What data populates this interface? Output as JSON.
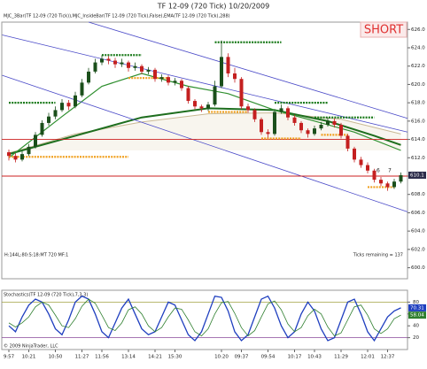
{
  "chart_data": [
    {
      "type": "candlestick",
      "title": "TF 12-09 (720 Tick)  10/20/2009",
      "subtitle": "MJC_3Bar(TF 12-09 (720 Tick)),MJC_InsideBar(TF 12-09 (720 Tick),False),EMA(TF 12-09 (720 Tick),288)",
      "badge": "SHORT",
      "status_left": "H:144L:80:S:18:MT 720 MF:1",
      "status_right": "Ticks remaining = 137",
      "categories": [
        "9:57",
        null,
        null,
        "10:21",
        null,
        null,
        null,
        "10:50",
        null,
        null,
        null,
        "11:27",
        null,
        null,
        "11:56",
        null,
        null,
        null,
        "13:14",
        null,
        null,
        null,
        "14:21",
        null,
        null,
        "15:30",
        null,
        null,
        null,
        null,
        null,
        null,
        "10:20",
        null,
        null,
        "09:37",
        null,
        null,
        null,
        "09:54",
        null,
        null,
        null,
        "10:17",
        null,
        null,
        "10:43",
        null,
        null,
        null,
        "11:29",
        null,
        null,
        null,
        "12:01",
        null,
        null,
        "12:37",
        null,
        null
      ],
      "open": [
        612.6,
        612.2,
        611.8,
        612.4,
        613.2,
        614.5,
        615.8,
        616.5,
        617.2,
        618.0,
        617.6,
        618.8,
        620.2,
        621.4,
        622.4,
        622.8,
        622.6,
        622.2,
        622.4,
        621.8,
        622.0,
        621.4,
        621.6,
        620.6,
        620.8,
        620.2,
        620.4,
        619.6,
        618.2,
        617.6,
        617.4,
        617.8,
        619.8,
        623.0,
        621.2,
        620.6,
        617.6,
        617.2,
        616.2,
        614.8,
        614.6,
        617.0,
        617.4,
        616.4,
        615.8,
        615.0,
        614.6,
        615.2,
        615.6,
        616.0,
        615.6,
        614.4,
        613.0,
        611.8,
        611.2,
        610.6,
        609.6,
        609.2,
        608.8,
        609.4
      ],
      "high": [
        612.9,
        612.5,
        612.7,
        613.5,
        614.8,
        616.1,
        616.9,
        617.6,
        618.4,
        618.3,
        619.2,
        620.6,
        621.8,
        622.8,
        623.2,
        623.1,
        622.9,
        622.8,
        622.6,
        622.4,
        622.2,
        621.9,
        621.8,
        621.1,
        621.0,
        620.7,
        620.6,
        619.8,
        618.4,
        617.8,
        618.1,
        620.4,
        624.8,
        623.4,
        621.8,
        620.8,
        617.9,
        617.4,
        616.4,
        615.1,
        617.3,
        617.8,
        617.6,
        616.7,
        616.0,
        615.2,
        615.5,
        615.9,
        616.4,
        616.3,
        615.8,
        614.6,
        613.2,
        612.1,
        611.5,
        610.8,
        609.9,
        609.4,
        609.7,
        610.4
      ],
      "low": [
        611.7,
        611.5,
        611.6,
        612.2,
        613.0,
        614.3,
        615.5,
        616.2,
        617.0,
        617.2,
        617.4,
        618.6,
        620.0,
        621.2,
        622.1,
        622.2,
        621.8,
        621.9,
        621.4,
        621.5,
        621.1,
        621.1,
        620.3,
        620.3,
        619.9,
        619.9,
        619.3,
        617.9,
        617.3,
        617.0,
        617.1,
        617.6,
        619.6,
        620.8,
        620.2,
        617.3,
        616.9,
        615.9,
        614.5,
        614.2,
        614.4,
        616.8,
        616.1,
        615.5,
        614.7,
        614.2,
        614.4,
        615.0,
        615.4,
        615.3,
        614.1,
        612.7,
        611.5,
        610.9,
        610.3,
        609.3,
        608.9,
        608.4,
        608.6,
        609.2
      ],
      "close": [
        612.2,
        611.8,
        612.4,
        613.2,
        614.5,
        615.8,
        616.5,
        617.2,
        618.0,
        617.6,
        618.8,
        620.2,
        621.4,
        622.4,
        622.8,
        622.6,
        622.2,
        622.4,
        621.8,
        622.0,
        621.4,
        621.6,
        620.6,
        620.8,
        620.2,
        620.4,
        619.6,
        618.2,
        617.6,
        617.4,
        617.8,
        619.8,
        623.0,
        621.2,
        620.6,
        617.6,
        617.2,
        616.2,
        614.8,
        614.6,
        617.0,
        617.4,
        616.4,
        615.8,
        615.0,
        614.6,
        615.2,
        615.6,
        616.0,
        615.6,
        614.4,
        613.0,
        611.8,
        611.2,
        610.6,
        609.6,
        609.2,
        608.8,
        609.4,
        610.1
      ],
      "up_color": "#1b4f1b",
      "down_color": "#c42020",
      "ylim": [
        598.8,
        626.8
      ],
      "yticks": [
        {
          "value": 600,
          "label": "600.0"
        },
        {
          "value": 602,
          "label": "602.0"
        },
        {
          "value": 604,
          "label": "604.0"
        },
        {
          "value": 606,
          "label": "606.0"
        },
        {
          "value": 608,
          "label": "608.0"
        },
        {
          "value": 610,
          "label": "610.0"
        },
        {
          "value": 612,
          "label": "612.0"
        },
        {
          "value": 614,
          "label": "614.0"
        },
        {
          "value": 616,
          "label": "616.0"
        },
        {
          "value": 618,
          "label": "618.0"
        },
        {
          "value": 620,
          "label": "620.0"
        },
        {
          "value": 622,
          "label": "622.0"
        },
        {
          "value": 624,
          "label": "624.0"
        },
        {
          "value": 626,
          "label": "626.0"
        }
      ],
      "overlays": [
        {
          "x": [
            0,
            10,
            20,
            30,
            40,
            50,
            59
          ],
          "values": [
            612.5,
            614.6,
            615.9,
            616.8,
            616.9,
            616.2,
            614.6
          ],
          "color": "#c9b994",
          "width": 1
        },
        {
          "x": [
            0,
            10,
            20,
            30,
            40,
            48,
            55,
            59
          ],
          "values": [
            612.4,
            614.4,
            616.4,
            617.4,
            617.2,
            616.0,
            614.4,
            613.4
          ],
          "color": "#1e6e1e",
          "width": 2
        },
        {
          "x": [
            0,
            8,
            14,
            20,
            27,
            33,
            40,
            46,
            52,
            59
          ],
          "values": [
            612.0,
            616.5,
            619.8,
            621.2,
            619.8,
            619.0,
            617.2,
            616.0,
            614.8,
            612.8
          ],
          "color": "#2f8f2f",
          "width": 1.2
        }
      ],
      "trendlines": [
        {
          "x": [
            12,
            60
          ],
          "values": [
            626.8,
            616.3
          ],
          "color": "#4a4ac8"
        },
        {
          "x": [
            -1,
            60
          ],
          "values": [
            625.4,
            614.8
          ],
          "color": "#4a4ac8"
        },
        {
          "x": [
            -1,
            60
          ],
          "values": [
            621.0,
            606.1
          ],
          "color": "#4a4ac8"
        }
      ],
      "hlines": [
        {
          "value": 614.0,
          "color": "#cc1f1f"
        },
        {
          "value": 610.0,
          "color": "#cc1f1f"
        }
      ],
      "levels": [
        {
          "x": [
            0,
            7
          ],
          "value": 618.0,
          "color": "#1a7a1a"
        },
        {
          "x": [
            14,
            20
          ],
          "value": 623.2,
          "color": "#1a7a1a"
        },
        {
          "x": [
            31,
            41
          ],
          "value": 624.6,
          "color": "#1a7a1a"
        },
        {
          "x": [
            40,
            48
          ],
          "value": 618.0,
          "color": "#1a7a1a"
        },
        {
          "x": [
            46,
            55
          ],
          "value": 616.4,
          "color": "#1a7a1a"
        },
        {
          "x": [
            0,
            18
          ],
          "value": 612.1,
          "color": "#f0a020"
        },
        {
          "x": [
            18,
            24
          ],
          "value": 620.7,
          "color": "#f0a020"
        },
        {
          "x": [
            30,
            36
          ],
          "value": 617.0,
          "color": "#f0a020"
        },
        {
          "x": [
            38,
            44
          ],
          "value": 614.1,
          "color": "#f0a020"
        },
        {
          "x": [
            47,
            51
          ],
          "value": 614.5,
          "color": "#f0a020"
        },
        {
          "x": [
            54,
            58
          ],
          "value": 608.8,
          "color": "#f0a020"
        }
      ],
      "annotations": [
        "6",
        "7"
      ]
    },
    {
      "type": "line",
      "title": "Stochastics(TF 12-09 (720 Tick),7,3,3)",
      "copyright": "© 2009 NinjaTrader, LLC",
      "ylim": [
        0,
        100
      ],
      "yticks": [
        20,
        40,
        60,
        80
      ],
      "ref_colors": [
        "#8a4a9a",
        "#a0a040"
      ],
      "series": [
        {
          "color": "#1f3fbf",
          "values": [
            40,
            30,
            55,
            75,
            85,
            80,
            60,
            35,
            25,
            50,
            80,
            90,
            85,
            60,
            30,
            20,
            45,
            70,
            85,
            60,
            35,
            25,
            30,
            55,
            80,
            75,
            50,
            25,
            15,
            30,
            60,
            90,
            88,
            65,
            30,
            15,
            25,
            55,
            85,
            90,
            70,
            40,
            20,
            30,
            60,
            80,
            65,
            35,
            15,
            20,
            50,
            80,
            85,
            60,
            30,
            15,
            35,
            55,
            65,
            70.31
          ]
        },
        {
          "color": "#2f7f2f",
          "values": [
            45,
            38,
            45,
            55,
            72,
            80,
            75,
            58,
            40,
            37,
            52,
            73,
            85,
            78,
            58,
            37,
            32,
            45,
            67,
            72,
            60,
            40,
            30,
            37,
            55,
            70,
            68,
            50,
            30,
            23,
            35,
            60,
            79,
            81,
            61,
            37,
            23,
            32,
            55,
            77,
            82,
            67,
            43,
            30,
            37,
            57,
            68,
            60,
            38,
            23,
            28,
            50,
            72,
            75,
            58,
            35,
            27,
            35,
            52,
            58.04
          ]
        }
      ]
    }
  ]
}
